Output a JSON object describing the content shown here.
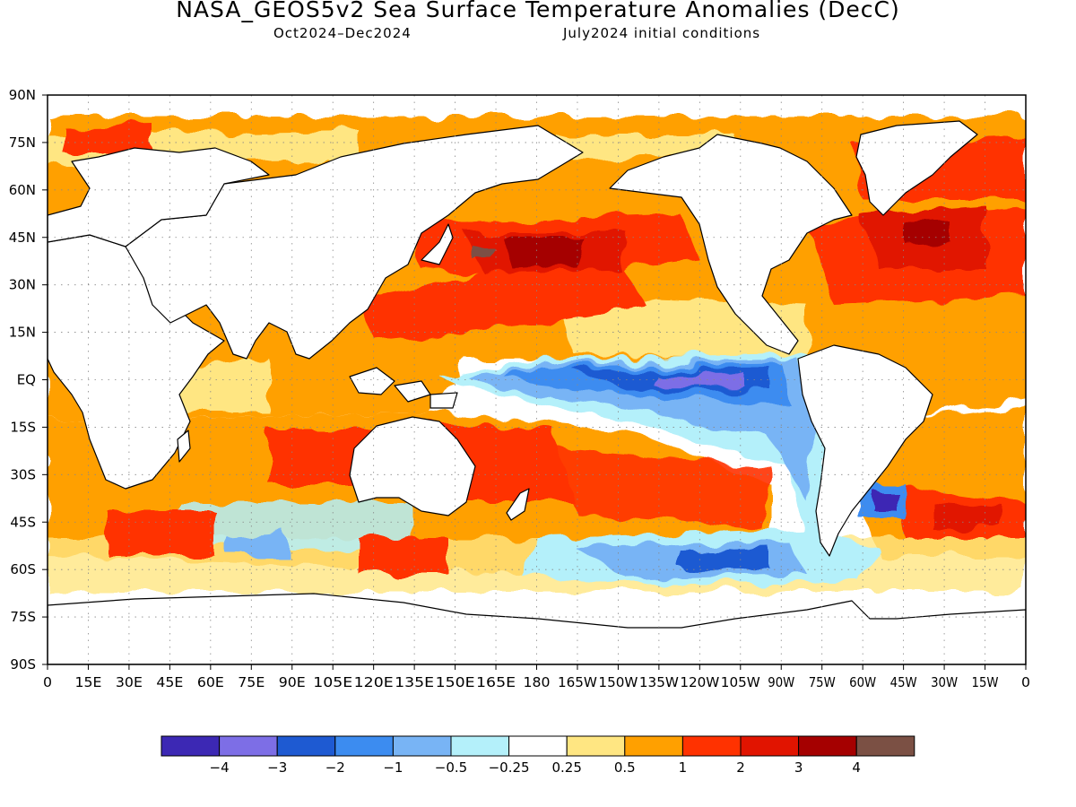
{
  "title": "NASA_GEOS5v2 Sea Surface Temperature Anomalies (DecC)",
  "subtitle_left": "Oct2024–Dec2024",
  "subtitle_right": "July2024 initial conditions",
  "lat_labels": [
    "90N",
    "75N",
    "60N",
    "45N",
    "30N",
    "15N",
    "EQ",
    "15S",
    "30S",
    "45S",
    "60S",
    "75S",
    "90S"
  ],
  "lon_labels": [
    "0",
    "15E",
    "30E",
    "45E",
    "60E",
    "75E",
    "90E",
    "105E",
    "120E",
    "135E",
    "150E",
    "165E",
    "180",
    "165W",
    "150W",
    "135W",
    "120W",
    "105W",
    "90W",
    "75W",
    "60W",
    "45W",
    "30W",
    "15W",
    "0"
  ],
  "legend": {
    "colors": [
      "#3c28b4",
      "#7d6ee6",
      "#1e5ad2",
      "#3c8cf0",
      "#78b4f5",
      "#b4f0fa",
      "#ffffff",
      "#ffe682",
      "#ffa000",
      "#ff3200",
      "#e11400",
      "#a50000",
      "#7b5044"
    ],
    "labels": [
      "−4",
      "−3",
      "−2",
      "−1",
      "−0.5",
      "−0.25",
      "0.25",
      "0.5",
      "1",
      "2",
      "3",
      "4"
    ]
  }
}
